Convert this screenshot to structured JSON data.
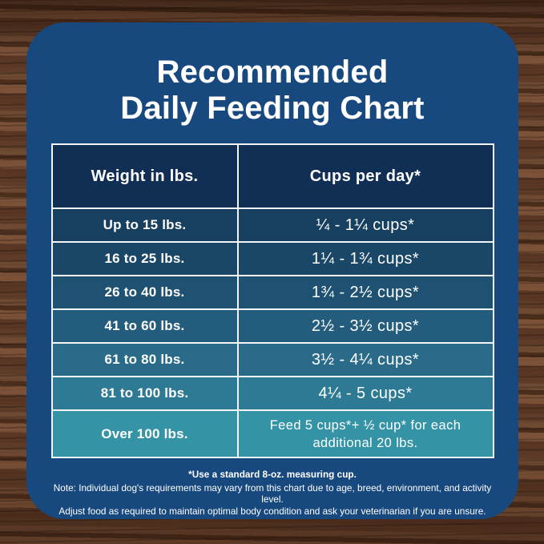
{
  "title": {
    "line1": "Recommended",
    "line2": "Daily Feeding Chart"
  },
  "colors": {
    "card_background": "#17497f",
    "header_row": "#112f55",
    "table_border": "#f3f5f7",
    "text": "#ffffff",
    "wood_brown": "#5e3c28"
  },
  "table": {
    "headers": [
      "Weight in lbs.",
      "Cups per day*"
    ],
    "rows": [
      {
        "weight": "Up to 15 lbs.",
        "cups": "¼ - 1¼ cups*",
        "color": "#163f60"
      },
      {
        "weight": "16 to 25 lbs.",
        "cups": "1¼ - 1¾ cups*",
        "color": "#1a4768"
      },
      {
        "weight": "26 to 40 lbs.",
        "cups": "1¾ - 2½ cups*",
        "color": "#1e5172"
      },
      {
        "weight": "41 to 60 lbs.",
        "cups": "2½ - 3½ cups*",
        "color": "#235c7d"
      },
      {
        "weight": "61 to 80 lbs.",
        "cups": "3½ - 4¼ cups*",
        "color": "#296b88"
      },
      {
        "weight": "81 to 100 lbs.",
        "cups": "4¼ - 5 cups*",
        "color": "#2e7a94"
      },
      {
        "weight": "Over 100 lbs.",
        "cups": "Feed 5 cups*+ ½ cup* for each\nadditional 20 lbs.",
        "color": "#3494a6",
        "tall": true
      }
    ]
  },
  "footnotes": {
    "measuring_cup": "*Use a standard 8-oz. measuring cup.",
    "note_line1": "Note: Individual dog's requirements may vary from this chart due to age, breed, environment, and activity level.",
    "note_line2": "Adjust food as required to maintain optimal body condition and ask your veterinarian if you are unsure."
  },
  "chart_data": {
    "type": "table",
    "title": "Recommended Daily Feeding Chart",
    "columns": [
      "Weight in lbs.",
      "Cups per day*"
    ],
    "rows": [
      [
        "Up to 15 lbs.",
        "¼ - 1¼ cups*"
      ],
      [
        "16 to 25 lbs.",
        "1¼ - 1¾ cups*"
      ],
      [
        "26 to 40 lbs.",
        "1¾ - 2½ cups*"
      ],
      [
        "41 to 60 lbs.",
        "2½ - 3½ cups*"
      ],
      [
        "61 to 80 lbs.",
        "3½ - 4¼ cups*"
      ],
      [
        "81 to 100 lbs.",
        "4¼ - 5 cups*"
      ],
      [
        "Over 100 lbs.",
        "Feed 5 cups*+ ½ cup* for each additional 20 lbs."
      ]
    ],
    "notes": [
      "*Use a standard 8-oz. measuring cup.",
      "Note: Individual dog's requirements may vary from this chart due to age, breed, environment, and activity level.",
      "Adjust food as required to maintain optimal body condition and ask your veterinarian if you are unsure."
    ],
    "legend_position": "none",
    "grid": false
  }
}
